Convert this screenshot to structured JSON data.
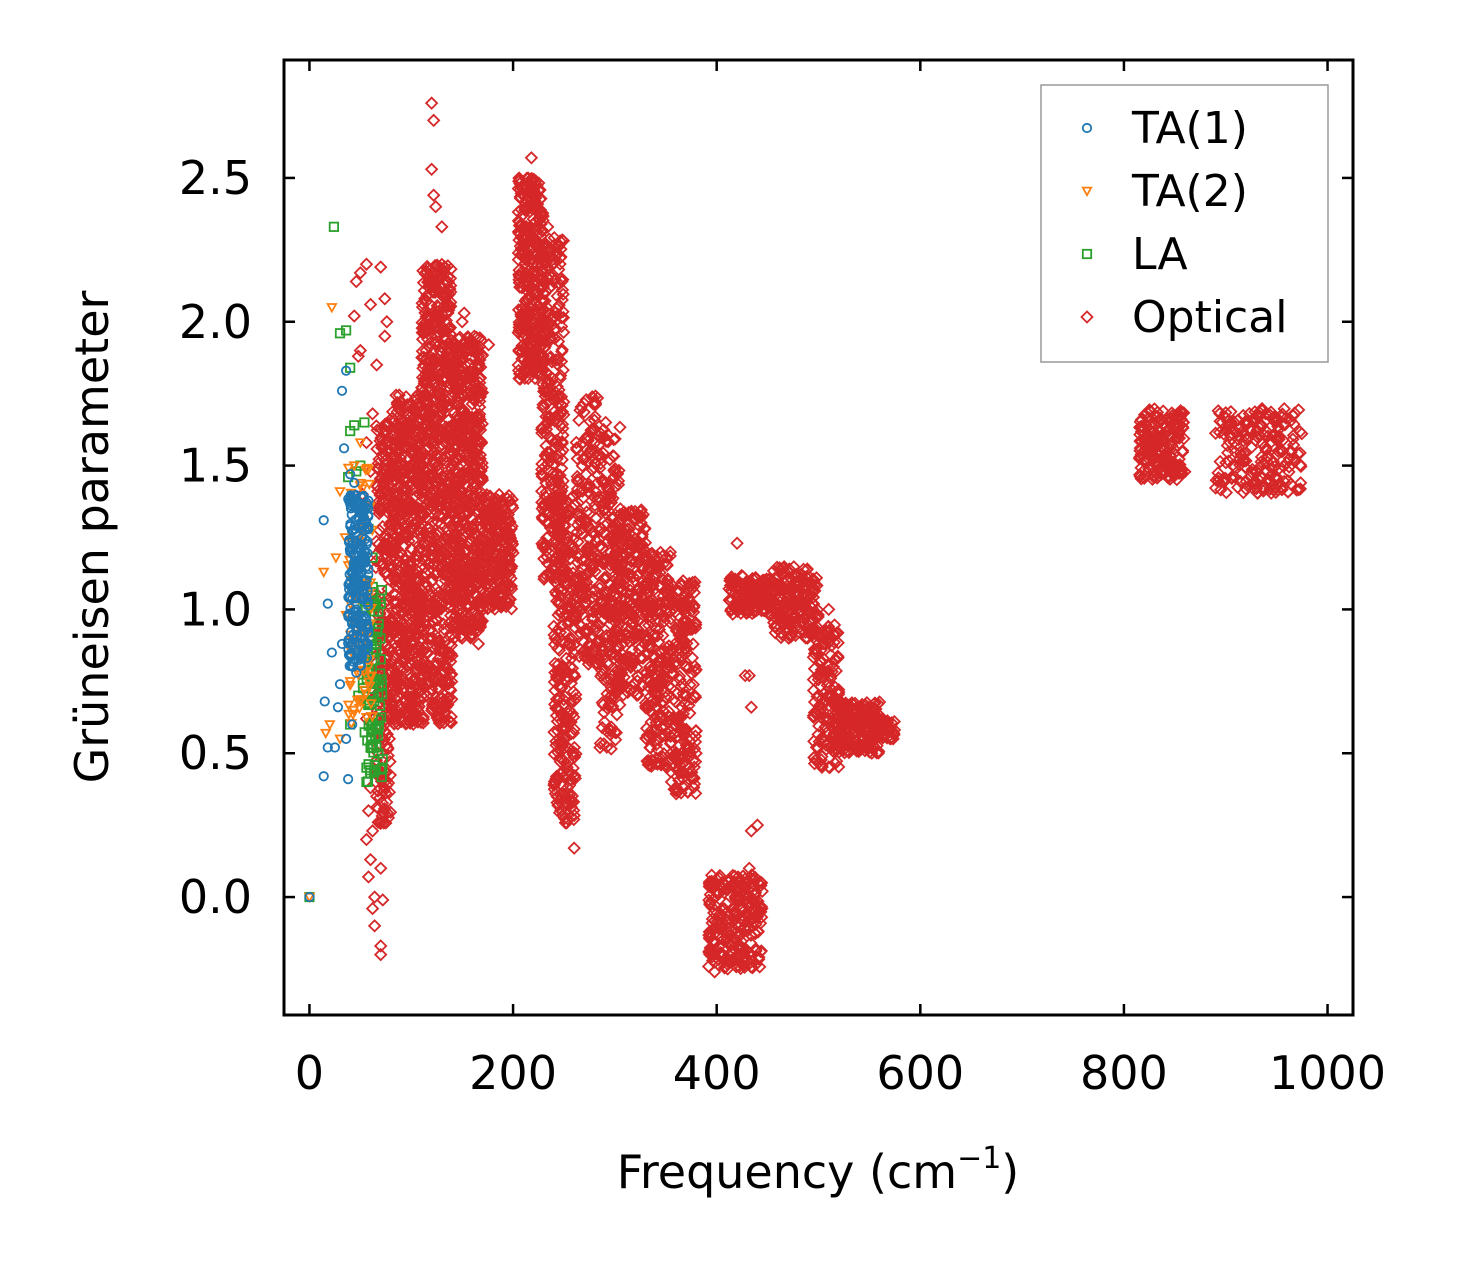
{
  "chart_data": {
    "type": "scatter",
    "title": "",
    "xlabel": "Frequency (cm",
    "xlabel_sup": "−1",
    "xlabel_close": ")",
    "ylabel": "Grüneisen parameter",
    "xlim": [
      -25,
      1025
    ],
    "ylim": [
      -0.41,
      2.91
    ],
    "xticks": [
      0,
      200,
      400,
      600,
      800,
      1000
    ],
    "yticks": [
      0.0,
      0.5,
      1.0,
      1.5,
      2.0,
      2.5
    ],
    "xtick_labels": [
      "0",
      "200",
      "400",
      "600",
      "800",
      "1000"
    ],
    "ytick_labels": [
      "0.0",
      "0.5",
      "1.0",
      "1.5",
      "2.0",
      "2.5"
    ],
    "legend_position": "top-right",
    "series": [
      {
        "name": "TA(1)",
        "marker": "circle",
        "color": "#1f77b4",
        "points": [
          [
            0,
            0
          ],
          [
            14,
            0.42
          ],
          [
            18,
            0.52
          ],
          [
            22,
            0.85
          ],
          [
            18,
            1.02
          ],
          [
            14,
            1.31
          ],
          [
            15,
            0.68
          ],
          [
            25,
            0.52
          ],
          [
            28,
            0.66
          ],
          [
            32,
            0.88
          ],
          [
            32,
            1.76
          ],
          [
            34,
            1.56
          ],
          [
            36,
            1.83
          ],
          [
            38,
            0.41
          ],
          [
            40,
            1.47
          ],
          [
            42,
            1.38
          ],
          [
            45,
            1.28
          ],
          [
            40,
            1.2
          ],
          [
            44,
            1.1
          ],
          [
            46,
            1.0
          ],
          [
            48,
            0.95
          ],
          [
            50,
            0.9
          ],
          [
            52,
            0.85
          ],
          [
            42,
            0.6
          ],
          [
            36,
            0.55
          ],
          [
            30,
            0.74
          ],
          [
            46,
            0.78
          ],
          [
            38,
            0.98
          ],
          [
            44,
            1.44
          ],
          [
            48,
            1.32
          ],
          [
            52,
            1.22
          ],
          [
            55,
            1.1
          ],
          [
            50,
            1.05
          ],
          [
            54,
            0.92
          ],
          [
            56,
            0.88
          ]
        ],
        "clusters": [
          [
            38,
            58,
            0.8,
            1.4,
            220
          ]
        ]
      },
      {
        "name": "TA(2)",
        "marker": "triangle-down",
        "color": "#ff7f0e",
        "points": [
          [
            0,
            0
          ],
          [
            22,
            2.05
          ],
          [
            14,
            1.13
          ],
          [
            16,
            0.57
          ],
          [
            20,
            0.6
          ],
          [
            30,
            0.55
          ],
          [
            26,
            1.18
          ],
          [
            30,
            1.41
          ],
          [
            35,
            1.25
          ],
          [
            40,
            0.75
          ],
          [
            45,
            1.35
          ],
          [
            50,
            1.58
          ],
          [
            52,
            1.42
          ],
          [
            56,
            1.3
          ],
          [
            48,
            0.9
          ],
          [
            54,
            0.72
          ],
          [
            58,
            0.8
          ],
          [
            42,
            1.05
          ],
          [
            36,
            0.98
          ],
          [
            44,
            1.5
          ],
          [
            50,
            0.68
          ]
        ],
        "clusters": [
          [
            38,
            62,
            0.6,
            1.5,
            70
          ]
        ]
      },
      {
        "name": "LA",
        "marker": "square",
        "color": "#2ca02c",
        "points": [
          [
            0,
            0
          ],
          [
            24,
            2.33
          ],
          [
            30,
            1.96
          ],
          [
            36,
            1.97
          ],
          [
            40,
            1.84
          ],
          [
            44,
            1.64
          ],
          [
            54,
            1.65
          ],
          [
            40,
            1.62
          ],
          [
            46,
            1.48
          ],
          [
            38,
            1.46
          ],
          [
            50,
            1.5
          ],
          [
            48,
            0.7
          ],
          [
            56,
            0.45
          ],
          [
            56,
            0.4
          ],
          [
            60,
            0.52
          ],
          [
            62,
            0.6
          ],
          [
            66,
            0.75
          ],
          [
            68,
            0.95
          ],
          [
            70,
            1.02
          ],
          [
            66,
            0.88
          ],
          [
            62,
            1.18
          ],
          [
            58,
            1.28
          ],
          [
            40,
            0.6
          ]
        ],
        "clusters": [
          [
            52,
            72,
            0.4,
            1.1,
            90
          ]
        ]
      },
      {
        "name": "Optical",
        "marker": "diamond",
        "color": "#d62728",
        "points": [
          [
            120,
            2.76
          ],
          [
            122,
            2.7
          ],
          [
            120,
            2.53
          ],
          [
            122,
            2.44
          ],
          [
            124,
            2.4
          ],
          [
            130,
            2.33
          ],
          [
            56,
            1.58
          ],
          [
            52,
            1.4
          ],
          [
            48,
            1.88
          ],
          [
            50,
            1.9
          ],
          [
            46,
            2.14
          ],
          [
            50,
            2.17
          ],
          [
            56,
            2.2
          ],
          [
            44,
            2.02
          ],
          [
            60,
            2.06
          ],
          [
            70,
            2.19
          ],
          [
            74,
            2.08
          ],
          [
            76,
            2.0
          ],
          [
            74,
            1.95
          ],
          [
            66,
            1.85
          ],
          [
            62,
            1.68
          ],
          [
            60,
            1.48
          ],
          [
            70,
            1.35
          ],
          [
            64,
            1.05
          ],
          [
            58,
            0.94
          ],
          [
            62,
            0.72
          ],
          [
            56,
            0.62
          ],
          [
            60,
            0.38
          ],
          [
            58,
            0.3
          ],
          [
            62,
            0.23
          ],
          [
            56,
            0.2
          ],
          [
            60,
            0.13
          ],
          [
            58,
            0.07
          ],
          [
            64,
            0.0
          ],
          [
            62,
            -0.04
          ],
          [
            64,
            -0.1
          ],
          [
            70,
            -0.17
          ],
          [
            70,
            -0.2
          ],
          [
            72,
            -0.01
          ],
          [
            70,
            0.1
          ],
          [
            66,
            0.35
          ],
          [
            74,
            0.6
          ],
          [
            150,
            2.0
          ],
          [
            152,
            2.03
          ],
          [
            176,
            1.92
          ],
          [
            218,
            2.57
          ],
          [
            226,
            2.46
          ],
          [
            234,
            2.33
          ],
          [
            260,
            0.17
          ],
          [
            398,
            -0.26
          ],
          [
            420,
            1.23
          ],
          [
            428,
            0.77
          ],
          [
            432,
            0.77
          ],
          [
            434,
            0.66
          ],
          [
            432,
            0.1
          ],
          [
            434,
            0.23
          ],
          [
            440,
            0.25
          ],
          [
            510,
            1.0
          ],
          [
            525,
            0.62
          ],
          [
            166,
            0.88
          ],
          [
            150,
            0.9
          ],
          [
            160,
            1.28
          ]
        ],
        "clusters": [
          [
            65,
            80,
            0.25,
            1.65,
            250
          ],
          [
            80,
            110,
            0.6,
            1.75,
            600
          ],
          [
            110,
            140,
            0.6,
            2.2,
            700
          ],
          [
            140,
            170,
            0.9,
            1.95,
            600
          ],
          [
            170,
            200,
            1.0,
            1.4,
            250
          ],
          [
            205,
            230,
            1.8,
            2.5,
            350
          ],
          [
            228,
            250,
            1.1,
            2.3,
            300
          ],
          [
            240,
            262,
            0.25,
            1.4,
            300
          ],
          [
            262,
            285,
            0.8,
            1.75,
            200
          ],
          [
            285,
            305,
            0.5,
            1.65,
            220
          ],
          [
            300,
            330,
            0.7,
            1.35,
            250
          ],
          [
            330,
            355,
            0.45,
            1.2,
            250
          ],
          [
            355,
            380,
            0.35,
            1.1,
            200
          ],
          [
            392,
            445,
            -0.25,
            0.08,
            260
          ],
          [
            412,
            455,
            0.98,
            1.12,
            160
          ],
          [
            455,
            500,
            0.9,
            1.15,
            200
          ],
          [
            495,
            520,
            0.45,
            0.95,
            150
          ],
          [
            515,
            560,
            0.5,
            0.68,
            200
          ],
          [
            550,
            575,
            0.55,
            0.62,
            60
          ],
          [
            815,
            860,
            1.45,
            1.7,
            200
          ],
          [
            890,
            975,
            1.4,
            1.7,
            220
          ]
        ]
      }
    ]
  }
}
